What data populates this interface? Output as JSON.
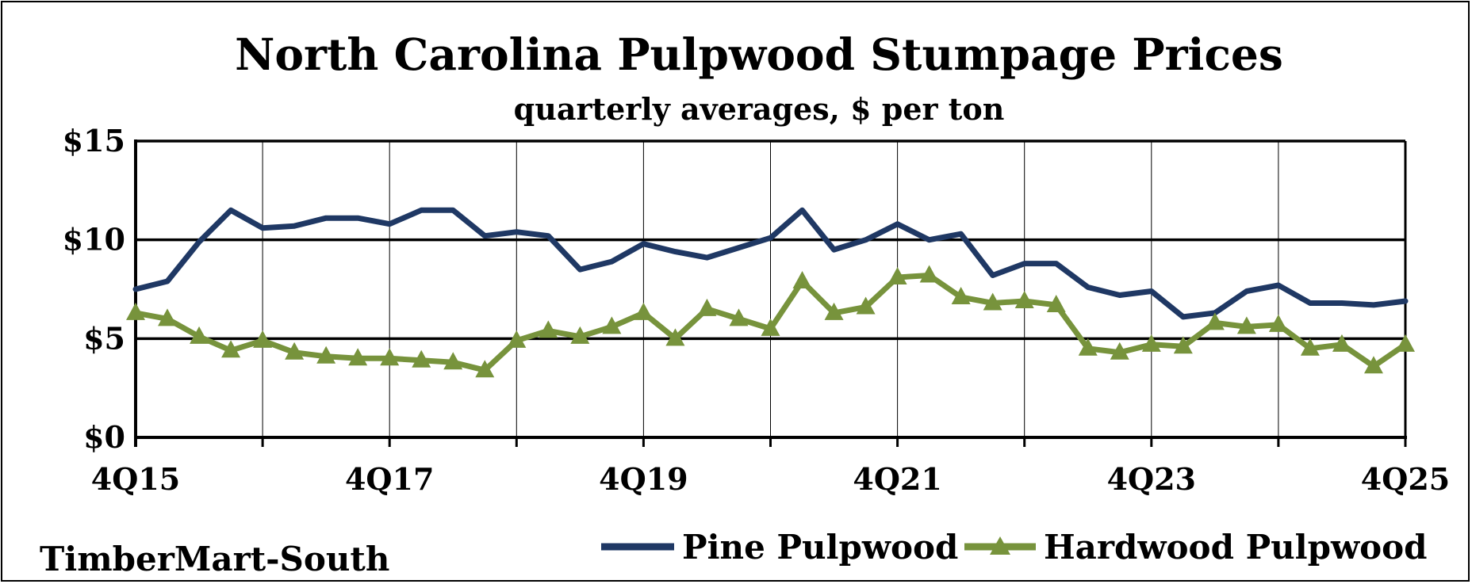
{
  "chart_data": {
    "type": "line",
    "title": "North Carolina Pulpwood Stumpage Prices",
    "subtitle": "quarterly averages, $ per ton",
    "source": "TimberMart-South",
    "ylim": [
      0,
      15
    ],
    "y_ticks": [
      0,
      5,
      10,
      15
    ],
    "y_tick_labels": [
      "$0",
      "$5",
      "$10",
      "$15"
    ],
    "x_tick_labels": [
      "4Q15",
      "4Q17",
      "4Q19",
      "4Q21",
      "4Q23",
      "4Q25"
    ],
    "x_tick_positions": [
      0,
      8,
      16,
      24,
      32,
      40
    ],
    "legend_position": "bottom-right",
    "series": [
      {
        "name": "Pine Pulpwood",
        "color": "#1f3864",
        "marker": "none",
        "values": [
          7.5,
          7.9,
          9.9,
          11.5,
          10.6,
          10.7,
          11.1,
          11.1,
          10.8,
          11.5,
          11.5,
          10.2,
          10.4,
          10.2,
          8.5,
          8.9,
          9.8,
          9.4,
          9.1,
          9.6,
          10.1,
          11.5,
          9.5,
          10.0,
          10.8,
          10.0,
          10.3,
          8.2,
          8.8,
          8.8,
          7.6,
          7.2,
          7.4,
          6.1,
          6.3,
          7.4,
          7.7,
          6.8,
          6.8,
          6.7,
          6.9
        ]
      },
      {
        "name": "Hardwood Pulpwood",
        "color": "#77933c",
        "marker": "triangle",
        "values": [
          6.3,
          6.0,
          5.1,
          4.4,
          4.9,
          4.3,
          4.1,
          4.0,
          4.0,
          3.9,
          3.8,
          3.4,
          4.9,
          5.4,
          5.1,
          5.6,
          6.3,
          5.0,
          6.5,
          6.0,
          5.5,
          7.9,
          6.3,
          6.6,
          8.1,
          8.2,
          7.1,
          6.8,
          6.9,
          6.7,
          4.5,
          4.3,
          4.7,
          4.6,
          5.8,
          5.6,
          5.7,
          4.5,
          4.7,
          3.6,
          4.7
        ]
      }
    ]
  }
}
